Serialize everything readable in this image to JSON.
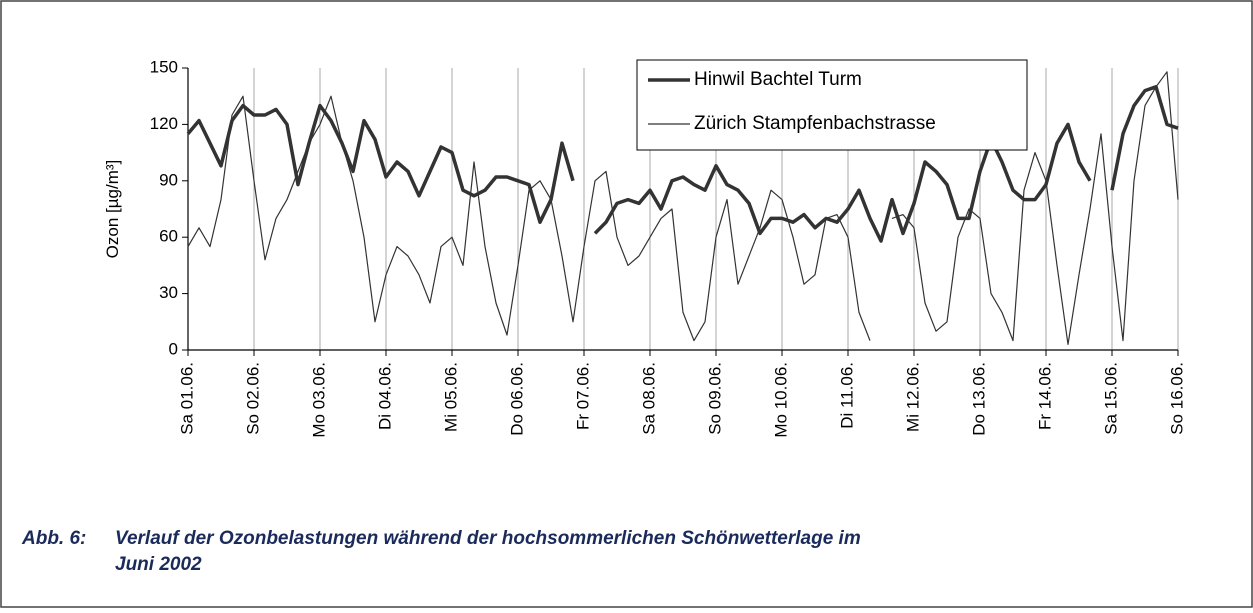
{
  "chart_data": {
    "type": "line",
    "ylabel": "Ozon [µg/m³]",
    "xlim": [
      0,
      360
    ],
    "xticks": [
      {
        "value": 0,
        "label": "Sa 01.06."
      },
      {
        "value": 24,
        "label": "So 02.06."
      },
      {
        "value": 48,
        "label": "Mo 03.06."
      },
      {
        "value": 72,
        "label": "Di 04.06."
      },
      {
        "value": 96,
        "label": "Mi 05.06."
      },
      {
        "value": 120,
        "label": "Do 06.06."
      },
      {
        "value": 144,
        "label": "Fr 07.06."
      },
      {
        "value": 168,
        "label": "Sa 08.06."
      },
      {
        "value": 192,
        "label": "So 09.06."
      },
      {
        "value": 216,
        "label": "Mo 10.06."
      },
      {
        "value": 240,
        "label": "Di 11.06."
      },
      {
        "value": 264,
        "label": "Mi 12.06."
      },
      {
        "value": 288,
        "label": "Do 13.06."
      },
      {
        "value": 312,
        "label": "Fr 14.06."
      },
      {
        "value": 336,
        "label": "Sa 15.06."
      },
      {
        "value": 360,
        "label": "So 16.06."
      }
    ],
    "ylim": [
      0,
      150
    ],
    "yticks": [
      0,
      30,
      60,
      90,
      120,
      150
    ],
    "grid": "x",
    "x": [
      0,
      4,
      8,
      12,
      16,
      20,
      24,
      28,
      32,
      36,
      40,
      44,
      48,
      52,
      56,
      60,
      64,
      68,
      72,
      76,
      80,
      84,
      88,
      92,
      96,
      100,
      104,
      108,
      112,
      116,
      120,
      124,
      128,
      132,
      136,
      140,
      144,
      148,
      152,
      156,
      160,
      164,
      168,
      172,
      176,
      180,
      184,
      188,
      192,
      196,
      200,
      204,
      208,
      212,
      216,
      220,
      224,
      228,
      232,
      236,
      240,
      244,
      248,
      252,
      256,
      260,
      264,
      268,
      272,
      276,
      280,
      284,
      288,
      292,
      296,
      300,
      304,
      308,
      312,
      316,
      320,
      324,
      328,
      332,
      336,
      340,
      344,
      348,
      352,
      356,
      360
    ],
    "series": [
      {
        "name": "Hinwil Bachtel Turm",
        "color": "#333333",
        "line_width": 3.5,
        "values": [
          115,
          122,
          110,
          98,
          122,
          130,
          125,
          125,
          128,
          120,
          88,
          110,
          130,
          122,
          110,
          95,
          122,
          112,
          92,
          100,
          95,
          82,
          95,
          108,
          105,
          85,
          82,
          85,
          92,
          92,
          90,
          88,
          68,
          80,
          110,
          90,
          null,
          62,
          68,
          78,
          80,
          78,
          85,
          75,
          90,
          92,
          88,
          85,
          98,
          88,
          85,
          78,
          62,
          70,
          70,
          68,
          72,
          65,
          70,
          68,
          75,
          85,
          70,
          58,
          80,
          62,
          78,
          100,
          95,
          88,
          70,
          70,
          95,
          112,
          100,
          85,
          80,
          80,
          88,
          110,
          120,
          100,
          90,
          null,
          85,
          115,
          130,
          138,
          140,
          120,
          118
        ]
      },
      {
        "name": "Zürich Stampfenbachstrasse",
        "color": "#333333",
        "line_width": 1.2,
        "values": [
          55,
          65,
          55,
          80,
          125,
          135,
          90,
          48,
          70,
          80,
          95,
          110,
          120,
          135,
          110,
          90,
          60,
          15,
          40,
          55,
          50,
          40,
          25,
          55,
          60,
          45,
          100,
          55,
          25,
          8,
          45,
          85,
          90,
          80,
          50,
          15,
          55,
          90,
          95,
          60,
          45,
          50,
          60,
          70,
          75,
          20,
          5,
          15,
          60,
          80,
          35,
          50,
          65,
          85,
          80,
          60,
          35,
          40,
          70,
          72,
          60,
          20,
          5,
          null,
          70,
          72,
          65,
          25,
          10,
          15,
          60,
          75,
          70,
          30,
          20,
          5,
          85,
          105,
          90,
          45,
          3,
          40,
          75,
          115,
          55,
          5,
          90,
          130,
          140,
          148,
          80
        ]
      }
    ],
    "caption_label": "Abb. 6:",
    "caption_lines": [
      "Verlauf der Ozonbelastungen während der hochsommerlichen Schönwetterlage im",
      "Juni 2002"
    ]
  }
}
